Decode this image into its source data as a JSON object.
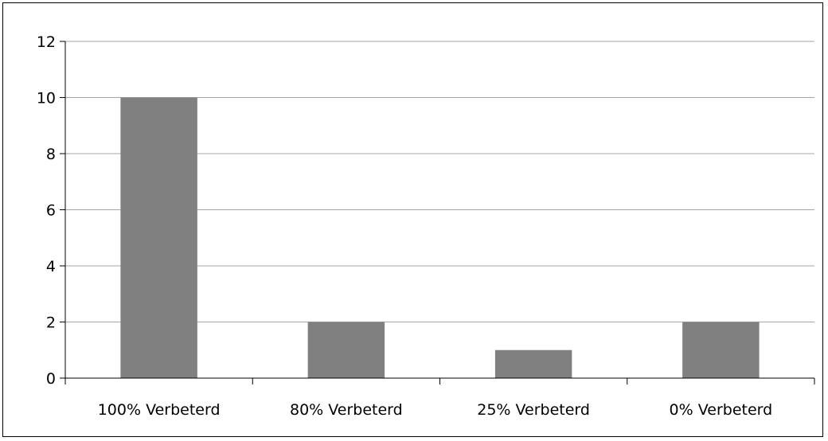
{
  "chart_data": {
    "type": "bar",
    "categories": [
      "100% Verbeterd",
      "80% Verbeterd",
      "25% Verbeterd",
      "0% Verbeterd"
    ],
    "values": [
      10,
      2,
      1,
      2
    ],
    "ylim": [
      0,
      12
    ],
    "yticks": [
      "0",
      "2",
      "4",
      "6",
      "8",
      "10",
      "12"
    ],
    "grid": true,
    "legend": "none",
    "title": "",
    "xlabel": "",
    "ylabel": "",
    "colors": {
      "bar": "#808080",
      "grid": "#a6a6a6",
      "axis": "#000000"
    }
  }
}
